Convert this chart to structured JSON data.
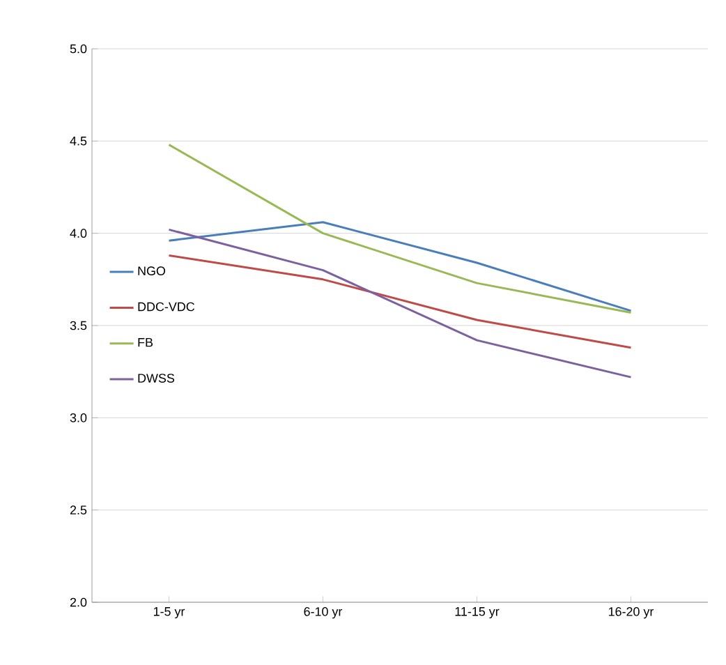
{
  "chart_data": {
    "type": "line",
    "categories": [
      "1-5 yr",
      "6-10 yr",
      "11-15 yr",
      "16-20 yr"
    ],
    "series": [
      {
        "name": "NGO",
        "color": "#4a7ebb",
        "values": [
          3.96,
          4.06,
          3.84,
          3.58
        ]
      },
      {
        "name": "DDC-VDC",
        "color": "#be4b48",
        "values": [
          3.88,
          3.75,
          3.53,
          3.38
        ]
      },
      {
        "name": "FB",
        "color": "#98b954",
        "values": [
          4.48,
          4.0,
          3.73,
          3.57
        ]
      },
      {
        "name": "DWSS",
        "color": "#7d60a0",
        "values": [
          4.02,
          3.8,
          3.42,
          3.22
        ]
      }
    ],
    "ylim": [
      2,
      5
    ],
    "yticks": [
      {
        "value": 2,
        "label": "2.0"
      },
      {
        "value": 2.5,
        "label": "2.5"
      },
      {
        "value": 3,
        "label": "3.0"
      },
      {
        "value": 3.5,
        "label": "3.5"
      },
      {
        "value": 4,
        "label": "4.0"
      },
      {
        "value": 4.5,
        "label": "4.5"
      },
      {
        "value": 5,
        "label": "5.0"
      }
    ],
    "grid": "y",
    "legend": "left",
    "marker": "none",
    "line_style": "solid"
  }
}
